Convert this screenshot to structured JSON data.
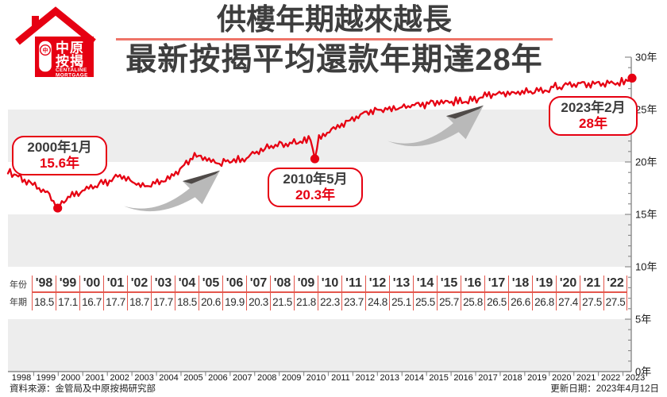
{
  "header": {
    "title_line1": "供樓年期越來越長",
    "title_line2": "最新按揭平均還款年期達28年",
    "logo": {
      "cn_top": "中原",
      "cn_bottom": "按揭",
      "en_top": "CENTALINE",
      "en_bottom": "MORTGAGE",
      "seal": "中"
    }
  },
  "colors": {
    "line_red": "#e60012",
    "accent_salmon": "#ee7468",
    "table_rule_red": "#e4574d",
    "band_gray": "#ededed",
    "axis_gray": "#8c8c8c",
    "title_gray": "#3e3e3e"
  },
  "chart_data": {
    "type": "line",
    "title": "供樓年期越來越長 最新按揭平均還款年期達28年",
    "x_axis": {
      "labels": [
        "1998",
        "1999",
        "2000",
        "2001",
        "2002",
        "2003",
        "2004",
        "2005",
        "2006",
        "2007",
        "2008",
        "2009",
        "2010",
        "2011",
        "2012",
        "2013",
        "2014",
        "2015",
        "2016",
        "2017",
        "2018",
        "2019",
        "2020",
        "2021",
        "2022",
        "2023"
      ]
    },
    "y_axis": {
      "min": 0,
      "max": 30,
      "unit": "年",
      "labels": [
        "0年",
        "5年",
        "10年",
        "15年",
        "20年",
        "25年",
        "30年"
      ],
      "gray_bands": [
        [
          0,
          5
        ],
        [
          10,
          15
        ],
        [
          20,
          25
        ]
      ]
    },
    "series": [
      {
        "name": "按揭平均還款年期",
        "color": "#e60012",
        "annual": {
          "years": [
            1998,
            1999,
            2000,
            2001,
            2002,
            2003,
            2004,
            2005,
            2006,
            2007,
            2008,
            2009,
            2010,
            2011,
            2012,
            2013,
            2014,
            2015,
            2016,
            2017,
            2018,
            2019,
            2020,
            2021,
            2022
          ],
          "values": [
            18.5,
            17.1,
            16.7,
            17.7,
            18.7,
            17.7,
            18.5,
            20.6,
            19.9,
            20.3,
            21.5,
            21.8,
            22.3,
            23.7,
            24.8,
            25.1,
            25.5,
            25.7,
            25.8,
            26.5,
            26.6,
            26.8,
            27.4,
            27.5,
            27.5
          ]
        },
        "key_points": [
          {
            "label": "2000年1月",
            "value_label": "15.6年",
            "t": 2000.0,
            "value": 15.6
          },
          {
            "label": "2010年5月",
            "value_label": "20.3年",
            "t": 2010.33,
            "value": 20.3
          },
          {
            "label": "2023年2月",
            "value_label": "28年",
            "t": 2023.08,
            "value": 28
          }
        ]
      }
    ]
  },
  "table": {
    "row1_label": "年份",
    "row2_label": "年期",
    "years": [
      "'98",
      "'99",
      "'00",
      "'01",
      "'02",
      "'03",
      "'04",
      "'05",
      "'06",
      "'07",
      "'08",
      "'09",
      "'10",
      "'11",
      "'12",
      "'13",
      "'14",
      "'15",
      "'16",
      "'17",
      "'18",
      "'19",
      "'20",
      "'21",
      "'22"
    ],
    "values": [
      "18.5",
      "17.1",
      "16.7",
      "17.7",
      "18.7",
      "17.7",
      "18.5",
      "20.6",
      "19.9",
      "20.3",
      "21.5",
      "21.8",
      "22.3",
      "23.7",
      "24.8",
      "25.1",
      "25.5",
      "25.7",
      "25.8",
      "26.5",
      "26.6",
      "26.8",
      "27.4",
      "27.5",
      "27.5"
    ]
  },
  "footer": {
    "source": "資料來源：金管局及中原按揭研究部",
    "updated": "更新日期：2023年4月12日"
  }
}
